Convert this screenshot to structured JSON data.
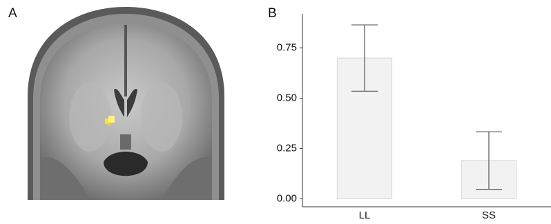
{
  "panel_labels": [
    "A",
    "B"
  ],
  "chart_data": {
    "type": "bar",
    "categories": [
      "LL",
      "SS"
    ],
    "values": [
      0.7,
      0.19
    ],
    "errors": [
      0.165,
      0.143
    ],
    "color": "#f2f2f2",
    "edge_color": "#d6d6d6",
    "error_color": "#555555",
    "ylim": [
      -0.04,
      0.92
    ],
    "yticks": [
      {
        "value": 0,
        "label": "0.00"
      },
      {
        "value": 0.25,
        "label": "0.25"
      },
      {
        "value": 0.5,
        "label": "0.50"
      },
      {
        "value": 0.75,
        "label": "0.75"
      }
    ],
    "grid": false
  }
}
